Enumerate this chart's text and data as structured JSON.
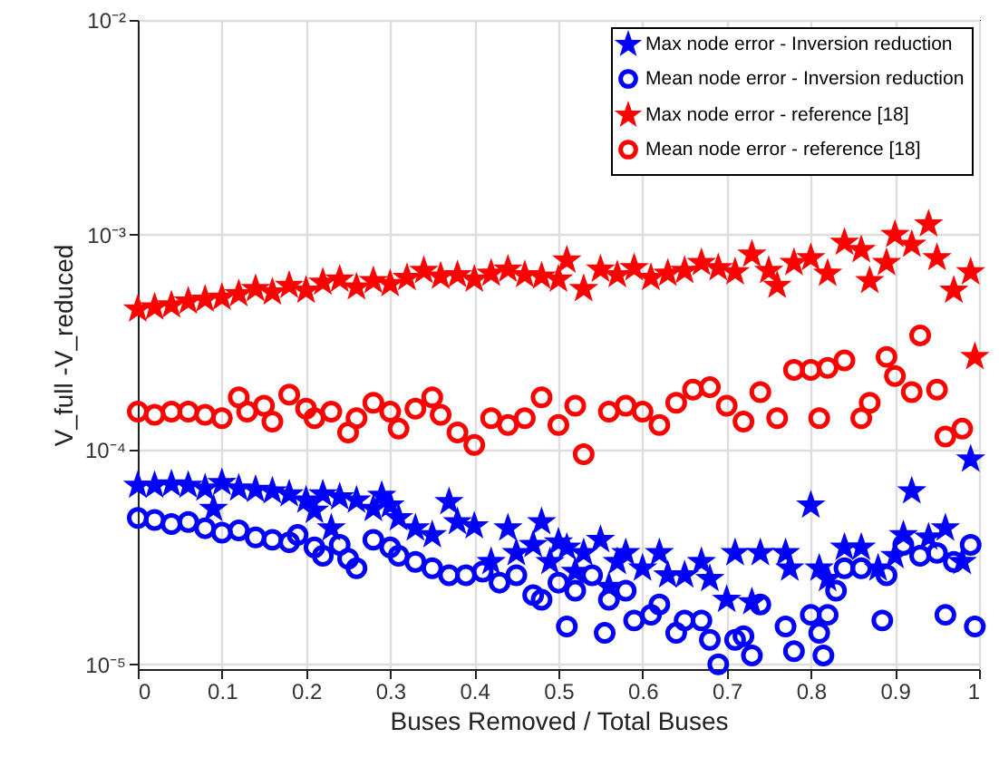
{
  "chart_data": {
    "type": "scatter",
    "xlabel": "Buses Removed / Total Buses",
    "ylabel": "V_full -V_reduced",
    "log": true,
    "grid": true,
    "legend": "top right",
    "xlim": [
      0,
      1
    ],
    "xticks": [
      0,
      0.1,
      0.2,
      0.3,
      0.4,
      0.5,
      0.6,
      0.7,
      0.8,
      0.9,
      1
    ],
    "ylim": [
      9.5e-06,
      0.01
    ],
    "yticks": [
      {
        "value": 1e-05,
        "label": "10⁻⁵"
      },
      {
        "value": 0.0001,
        "label": "10⁻⁴"
      },
      {
        "value": 0.001,
        "label": "10⁻³"
      },
      {
        "value": 0.01,
        "label": "10⁻²"
      }
    ],
    "series": [
      {
        "name": "Max node error - Inversion reduction",
        "color": "#0000ff",
        "marker": "star",
        "x": [
          0,
          0.02,
          0.04,
          0.06,
          0.08,
          0.09,
          0.1,
          0.12,
          0.14,
          0.16,
          0.18,
          0.2,
          0.21,
          0.22,
          0.23,
          0.24,
          0.26,
          0.28,
          0.29,
          0.3,
          0.31,
          0.33,
          0.35,
          0.37,
          0.38,
          0.4,
          0.42,
          0.44,
          0.45,
          0.47,
          0.48,
          0.49,
          0.5,
          0.51,
          0.52,
          0.53,
          0.55,
          0.56,
          0.57,
          0.58,
          0.6,
          0.62,
          0.63,
          0.65,
          0.67,
          0.68,
          0.7,
          0.71,
          0.73,
          0.74,
          0.77,
          0.775,
          0.8,
          0.81,
          0.82,
          0.84,
          0.86,
          0.88,
          0.9,
          0.91,
          0.92,
          0.94,
          0.96,
          0.98,
          0.99
        ],
        "values": [
          6.8e-05,
          6.8e-05,
          6.9e-05,
          6.8e-05,
          6.6e-05,
          5.3e-05,
          7e-05,
          6.6e-05,
          6.5e-05,
          6.4e-05,
          6.2e-05,
          5.8e-05,
          5.2e-05,
          6.2e-05,
          4.3e-05,
          6e-05,
          5.8e-05,
          5.3e-05,
          6.1e-05,
          5.5e-05,
          4.8e-05,
          4.3e-05,
          4e-05,
          5.7e-05,
          4.6e-05,
          4.4e-05,
          3e-05,
          4.3e-05,
          3.3e-05,
          3.6e-05,
          4.6e-05,
          3e-05,
          3.7e-05,
          3.5e-05,
          2.7e-05,
          3.3e-05,
          3.8e-05,
          2.3e-05,
          3e-05,
          3.3e-05,
          2.8e-05,
          3.3e-05,
          2.6e-05,
          2.6e-05,
          3e-05,
          2.5e-05,
          2e-05,
          3.3e-05,
          1.95e-05,
          3.3e-05,
          3.3e-05,
          2.8e-05,
          5.5e-05,
          2.8e-05,
          2.5e-05,
          3.5e-05,
          3.5e-05,
          2.8e-05,
          3.2e-05,
          4e-05,
          6.4e-05,
          3.9e-05,
          4.3e-05,
          3e-05,
          9e-05
        ]
      },
      {
        "name": "Mean node error - Inversion reduction",
        "color": "#0000ff",
        "marker": "circle",
        "x": [
          0,
          0.02,
          0.04,
          0.06,
          0.08,
          0.1,
          0.12,
          0.14,
          0.16,
          0.18,
          0.19,
          0.21,
          0.22,
          0.24,
          0.25,
          0.26,
          0.28,
          0.3,
          0.31,
          0.33,
          0.35,
          0.37,
          0.39,
          0.41,
          0.43,
          0.45,
          0.47,
          0.48,
          0.5,
          0.51,
          0.52,
          0.54,
          0.555,
          0.56,
          0.58,
          0.59,
          0.61,
          0.62,
          0.64,
          0.65,
          0.67,
          0.68,
          0.69,
          0.71,
          0.72,
          0.73,
          0.74,
          0.77,
          0.78,
          0.8,
          0.81,
          0.815,
          0.82,
          0.83,
          0.84,
          0.86,
          0.885,
          0.89,
          0.91,
          0.93,
          0.95,
          0.96,
          0.97,
          0.99,
          0.995
        ],
        "values": [
          4.8e-05,
          4.7e-05,
          4.5e-05,
          4.6e-05,
          4.3e-05,
          4.1e-05,
          4.2e-05,
          3.9e-05,
          3.8e-05,
          3.7e-05,
          4e-05,
          3.5e-05,
          3.2e-05,
          3.6e-05,
          3.1e-05,
          2.8e-05,
          3.8e-05,
          3.5e-05,
          3.2e-05,
          3e-05,
          2.8e-05,
          2.6e-05,
          2.6e-05,
          2.7e-05,
          2.4e-05,
          2.6e-05,
          2.1e-05,
          2e-05,
          2.4e-05,
          1.5e-05,
          2.2e-05,
          2.6e-05,
          1.4e-05,
          2e-05,
          2.2e-05,
          1.6e-05,
          1.7e-05,
          1.9e-05,
          1.4e-05,
          1.6e-05,
          1.6e-05,
          1.3e-05,
          1e-05,
          1.3e-05,
          1.35e-05,
          1.1e-05,
          1.9e-05,
          1.5e-05,
          1.15e-05,
          1.7e-05,
          1.4e-05,
          1.1e-05,
          1.7e-05,
          2.2e-05,
          2.8e-05,
          2.8e-05,
          1.6e-05,
          2.6e-05,
          3.6e-05,
          3.2e-05,
          3.3e-05,
          1.7e-05,
          3e-05,
          3.6e-05,
          1.5e-05
        ]
      },
      {
        "name": "Max node error - reference [18]",
        "color": "#ff0000",
        "marker": "star",
        "x": [
          0,
          0.02,
          0.04,
          0.06,
          0.08,
          0.1,
          0.12,
          0.14,
          0.16,
          0.18,
          0.2,
          0.22,
          0.24,
          0.26,
          0.28,
          0.3,
          0.32,
          0.34,
          0.36,
          0.38,
          0.4,
          0.42,
          0.44,
          0.46,
          0.48,
          0.5,
          0.51,
          0.53,
          0.55,
          0.57,
          0.59,
          0.61,
          0.63,
          0.65,
          0.67,
          0.69,
          0.71,
          0.73,
          0.75,
          0.76,
          0.78,
          0.8,
          0.82,
          0.84,
          0.86,
          0.87,
          0.89,
          0.9,
          0.92,
          0.94,
          0.95,
          0.97,
          0.99,
          0.995
        ],
        "values": [
          0.00045,
          0.00046,
          0.00047,
          0.00049,
          0.0005,
          0.00051,
          0.00053,
          0.00056,
          0.00054,
          0.00058,
          0.00055,
          0.0006,
          0.00062,
          0.00057,
          0.00061,
          0.00059,
          0.00063,
          0.00068,
          0.00064,
          0.00065,
          0.00062,
          0.00066,
          0.00069,
          0.00065,
          0.00064,
          0.00062,
          0.00076,
          0.00056,
          0.00069,
          0.00065,
          0.0007,
          0.00063,
          0.00066,
          0.00068,
          0.00074,
          0.0007,
          0.00067,
          0.00081,
          0.00068,
          0.00058,
          0.00074,
          0.00078,
          0.00066,
          0.00092,
          0.00085,
          0.00061,
          0.00074,
          0.001,
          0.0009,
          0.00112,
          0.00078,
          0.00055,
          0.00067,
          0.00027
        ]
      },
      {
        "name": "Mean node error - reference [18]",
        "color": "#ff0000",
        "marker": "circle",
        "x": [
          0,
          0.02,
          0.04,
          0.06,
          0.08,
          0.1,
          0.12,
          0.13,
          0.15,
          0.16,
          0.18,
          0.2,
          0.21,
          0.23,
          0.25,
          0.26,
          0.28,
          0.3,
          0.31,
          0.33,
          0.35,
          0.36,
          0.38,
          0.4,
          0.42,
          0.44,
          0.46,
          0.48,
          0.5,
          0.52,
          0.53,
          0.56,
          0.58,
          0.6,
          0.62,
          0.64,
          0.66,
          0.68,
          0.7,
          0.72,
          0.74,
          0.76,
          0.78,
          0.8,
          0.81,
          0.82,
          0.84,
          0.86,
          0.87,
          0.89,
          0.9,
          0.92,
          0.93,
          0.95,
          0.96,
          0.98
        ],
        "values": [
          0.00015,
          0.000145,
          0.00015,
          0.00015,
          0.000145,
          0.00014,
          0.000175,
          0.00015,
          0.00016,
          0.000135,
          0.00018,
          0.000155,
          0.00014,
          0.00015,
          0.00012,
          0.00014,
          0.000165,
          0.00015,
          0.000125,
          0.000155,
          0.000175,
          0.000145,
          0.00012,
          0.000105,
          0.00014,
          0.00013,
          0.00014,
          0.000175,
          0.00013,
          0.00016,
          9.5e-05,
          0.00015,
          0.00016,
          0.00015,
          0.00013,
          0.000165,
          0.00019,
          0.000195,
          0.00016,
          0.000135,
          0.000185,
          0.00014,
          0.000235,
          0.000235,
          0.00014,
          0.00024,
          0.00026,
          0.00014,
          0.000165,
          0.00027,
          0.00022,
          0.000185,
          0.00034,
          0.00019,
          0.000115,
          0.000125
        ]
      }
    ]
  }
}
